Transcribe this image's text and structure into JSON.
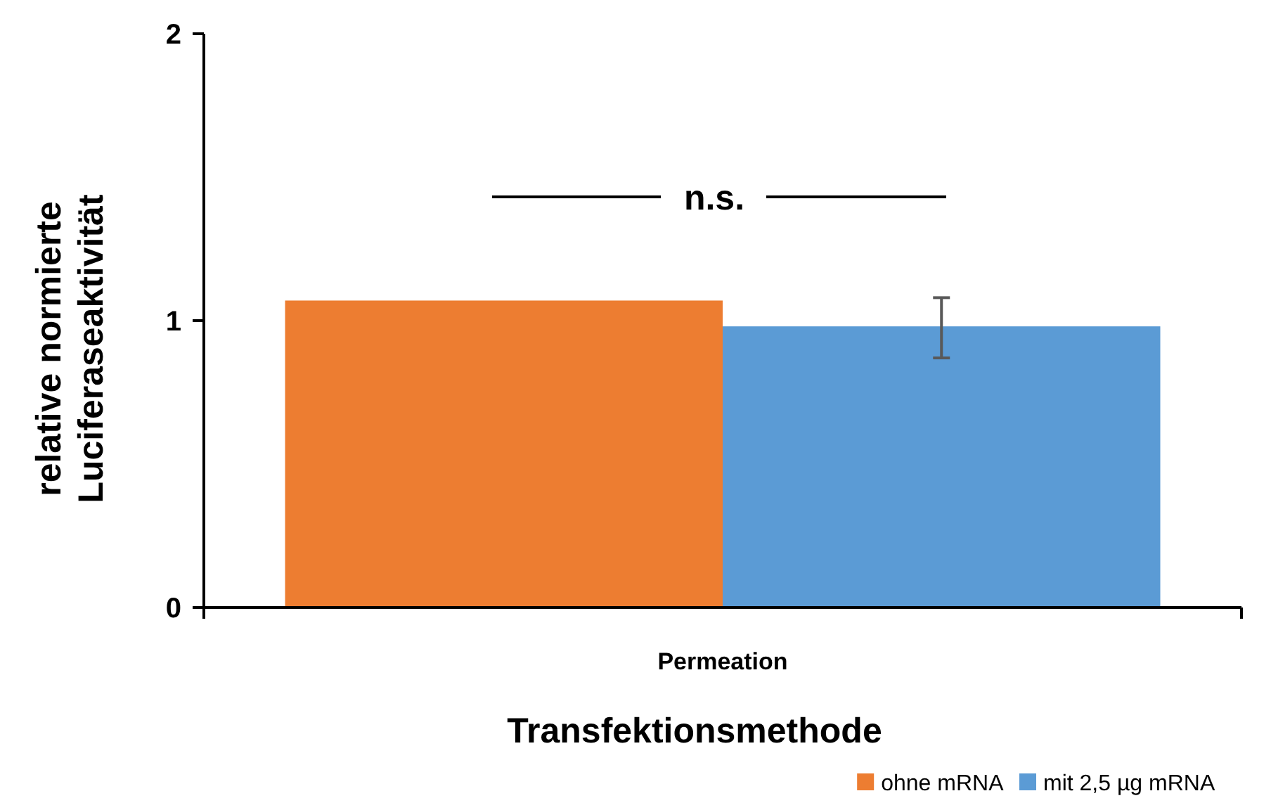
{
  "chart_data": {
    "type": "bar",
    "xlabel": "Transfektionsmethode",
    "ylabel": "relative normierte Luciferaseaktivität",
    "categories": [
      "Permeation"
    ],
    "series": [
      {
        "name": "ohne mRNA",
        "color": "#ed7d31",
        "values": [
          1.07
        ]
      },
      {
        "name": "mit 2,5 µg mRNA",
        "color": "#5b9bd5",
        "values": [
          0.98
        ],
        "errors": [
          [
            0.87,
            1.08
          ]
        ]
      }
    ],
    "ylim": [
      0,
      2
    ],
    "yticks": [
      0,
      1,
      2
    ],
    "grid": false,
    "legend": "bottom right",
    "annotations": [
      "n.s."
    ]
  }
}
